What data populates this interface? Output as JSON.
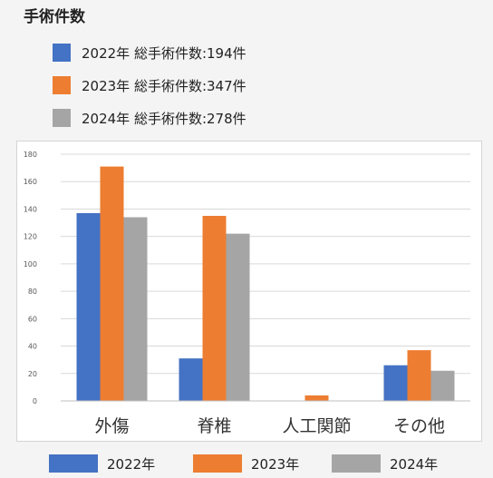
{
  "title": "手術件数",
  "summary": [
    {
      "text": "2022年 総手術件数:194件",
      "color": "#4472c4"
    },
    {
      "text": "2023年 総手術件数:347件",
      "color": "#ed7d31"
    },
    {
      "text": "2024年 総手術件数:278件",
      "color": "#a5a5a5"
    }
  ],
  "chart_data": {
    "type": "bar",
    "title": "",
    "xlabel": "",
    "ylabel": "",
    "categories": [
      "外傷",
      "脊椎",
      "人工関節",
      "その他"
    ],
    "series": [
      {
        "name": "2022年",
        "color": "#4472c4",
        "values": [
          137,
          31,
          0,
          26
        ]
      },
      {
        "name": "2023年",
        "color": "#ed7d31",
        "values": [
          171,
          135,
          4,
          37
        ]
      },
      {
        "name": "2024年",
        "color": "#a5a5a5",
        "values": [
          134,
          122,
          0,
          22
        ]
      }
    ],
    "ylim": [
      0,
      180
    ],
    "yticks": [
      "0",
      "20",
      "40",
      "60",
      "80",
      "100",
      "120",
      "140",
      "160",
      "180"
    ],
    "grid": true,
    "legend": "bottom"
  }
}
